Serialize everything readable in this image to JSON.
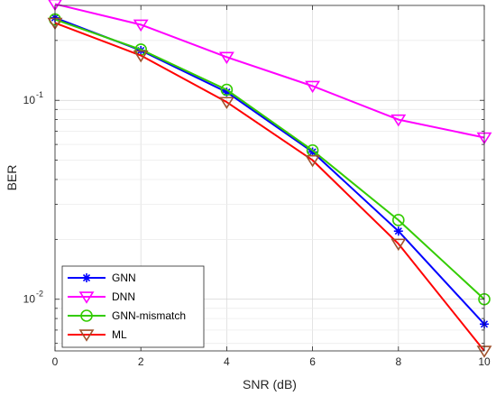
{
  "chart_data": {
    "type": "line",
    "title": "",
    "xlabel": "SNR (dB)",
    "ylabel": "BER",
    "x": [
      0,
      2,
      4,
      6,
      8,
      10
    ],
    "xticks": [
      "0",
      "2",
      "4",
      "6",
      "8",
      "10"
    ],
    "yscale": "log",
    "ylim": [
      0.0055,
      0.3
    ],
    "yticks": [
      {
        "value": 0.01,
        "base": "10",
        "exp": "-2"
      },
      {
        "value": 0.1,
        "base": "10",
        "exp": "-1"
      }
    ],
    "xlim": [
      0,
      10
    ],
    "grid": true,
    "legend_position": "bottom-left",
    "series": [
      {
        "name": "GNN",
        "values": [
          0.26,
          0.178,
          0.11,
          0.055,
          0.022,
          0.0075
        ],
        "color": "#0000ff",
        "marker": "asterisk",
        "line_color": "#0000ff"
      },
      {
        "name": "DNN",
        "values": [
          0.305,
          0.24,
          0.165,
          0.118,
          0.08,
          0.065
        ],
        "color": "#ff00ff",
        "marker": "triangle-down",
        "line_color": "#ff00ff"
      },
      {
        "name": "GNN-mismatch",
        "values": [
          0.255,
          0.18,
          0.113,
          0.056,
          0.025,
          0.01
        ],
        "color": "#33cc00",
        "marker": "circle",
        "line_color": "#33cc00"
      },
      {
        "name": "ML",
        "values": [
          0.245,
          0.168,
          0.098,
          0.05,
          0.019,
          0.0055
        ],
        "color": "#a0522d",
        "marker": "triangle-down",
        "line_color": "#ff0000"
      }
    ]
  }
}
